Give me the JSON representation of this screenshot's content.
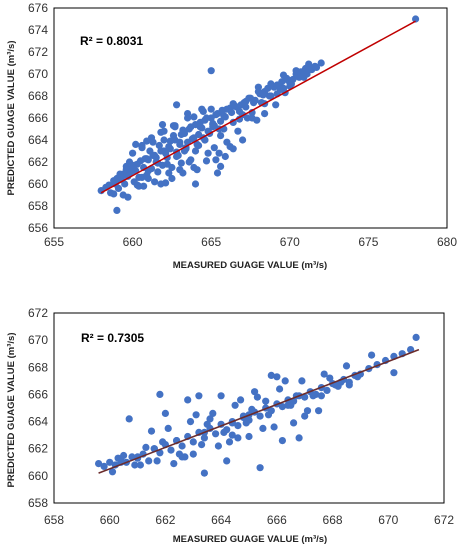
{
  "figure": {
    "panels": [
      {
        "r2_label": "R² = 0.8031",
        "xlabel": "MEASURED GUAGE VALUE (m³/s)",
        "ylabel": "PREDICTED GUAGE VALUE (m³/s)"
      },
      {
        "r2_label": "R² = 0.7305",
        "xlabel": "MEASURED GUAGE VALUE (m³/s)",
        "ylabel": "PREDICTED GUAGE VALUE (m³/s)"
      }
    ]
  },
  "colors": {
    "points": "#4472c4",
    "fit_line_top": "#c00000",
    "fit_line_bottom": "#7b2c2c",
    "frame": "#000000"
  },
  "chart_data": [
    {
      "type": "scatter",
      "title": "",
      "xlabel": "MEASURED GUAGE VALUE (m³/s)",
      "ylabel": "PREDICTED GUAGE VALUE (m³/s)",
      "xlim": [
        655,
        680
      ],
      "ylim": [
        656,
        676
      ],
      "xticks": [
        655,
        660,
        665,
        670,
        675,
        680
      ],
      "yticks": [
        656,
        658,
        660,
        662,
        664,
        666,
        668,
        670,
        672,
        674,
        676
      ],
      "grid": false,
      "annotation": "R² = 0.8031",
      "trendline": {
        "x": [
          658,
          678
        ],
        "y": [
          659.2,
          674.8
        ]
      },
      "x": [
        658.0,
        658.3,
        658.5,
        658.8,
        659.0,
        659.2,
        659.4,
        659.6,
        659.8,
        660.0,
        660.1,
        660.3,
        660.5,
        660.6,
        660.8,
        661.0,
        661.1,
        661.3,
        661.5,
        661.7,
        661.9,
        662.0,
        662.2,
        662.4,
        662.6,
        662.8,
        663.0,
        663.2,
        663.4,
        663.6,
        663.8,
        664.0,
        664.2,
        664.4,
        664.6,
        664.8,
        665.0,
        665.2,
        665.4,
        665.6,
        665.8,
        666.0,
        666.3,
        666.6,
        666.9,
        667.2,
        667.5,
        667.8,
        668.1,
        668.4,
        668.7,
        669.0,
        669.3,
        669.6,
        669.9,
        670.2,
        670.5,
        670.8,
        671.1,
        671.4,
        671.7,
        672.0,
        658.6,
        658.9,
        659.1,
        659.5,
        659.7,
        659.9,
        660.2,
        660.4,
        660.7,
        660.9,
        661.2,
        661.4,
        661.6,
        661.8,
        662.1,
        662.3,
        662.5,
        662.7,
        662.9,
        663.1,
        663.3,
        663.5,
        663.7,
        663.9,
        664.1,
        664.3,
        664.5,
        664.7,
        664.9,
        665.1,
        665.3,
        665.5,
        665.7,
        665.9,
        666.2,
        666.5,
        666.8,
        667.1,
        667.4,
        667.7,
        668.0,
        668.3,
        668.6,
        668.9,
        669.2,
        669.5,
        669.8,
        670.1,
        670.4,
        670.7,
        671.0,
        659.3,
        659.6,
        660.0,
        660.3,
        660.6,
        660.9,
        661.2,
        661.5,
        661.8,
        662.1,
        662.4,
        662.7,
        663.0,
        663.3,
        663.6,
        663.9,
        664.2,
        664.5,
        664.8,
        665.1,
        665.4,
        665.7,
        666.0,
        666.4,
        666.8,
        667.2,
        667.6,
        668.0,
        668.4,
        668.8,
        669.2,
        669.6,
        670.0,
        670.4,
        670.8,
        671.2,
        671.6,
        660.4,
        661.0,
        661.6,
        662.2,
        662.8,
        663.4,
        664.0,
        664.6,
        665.2,
        665.8,
        666.4,
        667.0,
        667.6,
        668.2,
        668.8,
        669.4,
        670.0,
        670.6,
        671.2,
        659.2,
        659.8,
        660.6,
        661.3,
        662.0,
        662.7,
        663.5,
        664.3,
        665.0,
        665.6,
        659.4,
        660.7,
        661.8,
        662.5,
        663.2,
        663.9,
        664.7,
        665.5,
        666.2,
        667.0,
        661.0,
        662.0,
        663.1,
        664.0,
        665.3,
        666.7,
        668.4,
        669.7,
        659.7,
        658.8,
        660.2,
        661.9,
        663.7,
        665.6,
        667.3,
        670.9,
        662.6,
        664.4,
        660.1,
        660.9,
        661.4,
        662.3,
        663.0,
        664.1,
        665.9,
        666.4,
        667.9,
        669.1,
        665.0,
        665.1,
        664.6,
        663.5,
        662.8,
        659.0,
        678.0
      ],
      "y": [
        659.4,
        659.7,
        659.9,
        660.3,
        660.5,
        660.4,
        660.9,
        661.3,
        661.0,
        661.5,
        660.2,
        661.8,
        662.1,
        660.6,
        662.3,
        661.2,
        663.0,
        662.6,
        662.0,
        663.5,
        661.7,
        664.0,
        662.4,
        663.2,
        664.4,
        662.9,
        663.8,
        664.9,
        663.3,
        665.0,
        664.1,
        665.4,
        664.5,
        665.1,
        665.8,
        664.8,
        666.0,
        665.3,
        666.4,
        665.7,
        666.2,
        666.8,
        666.5,
        667.0,
        667.2,
        667.5,
        667.8,
        667.6,
        668.2,
        668.4,
        668.0,
        668.8,
        669.0,
        668.7,
        669.4,
        669.5,
        669.8,
        670.2,
        670.0,
        670.4,
        670.6,
        671.0,
        659.2,
        660.0,
        659.6,
        660.0,
        660.7,
        661.1,
        661.2,
        660.6,
        661.5,
        662.3,
        661.4,
        662.6,
        661.9,
        663.0,
        662.8,
        663.4,
        661.5,
        664.0,
        662.6,
        664.5,
        663.0,
        663.8,
        665.2,
        664.2,
        663.6,
        665.6,
        664.2,
        666.0,
        664.6,
        665.5,
        666.3,
        665.0,
        666.6,
        666.1,
        666.9,
        667.1,
        666.6,
        667.4,
        667.8,
        667.4,
        668.4,
        668.1,
        668.7,
        668.9,
        669.0,
        669.3,
        669.6,
        669.1,
        670.0,
        670.2,
        670.5,
        660.6,
        661.6,
        662.8,
        659.9,
        663.5,
        660.8,
        664.2,
        662.4,
        664.7,
        660.1,
        663.9,
        665.2,
        661.3,
        664.6,
        662.0,
        666.1,
        663.5,
        666.6,
        662.8,
        665.4,
        661.0,
        666.7,
        663.8,
        667.3,
        665.9,
        667.0,
        666.5,
        668.8,
        667.3,
        669.1,
        668.2,
        669.9,
        668.9,
        670.3,
        669.8,
        670.9,
        670.7,
        659.8,
        660.5,
        661.1,
        661.8,
        662.5,
        663.2,
        663.0,
        664.0,
        663.3,
        665.0,
        665.6,
        666.3,
        666.0,
        667.4,
        668.0,
        668.6,
        669.4,
        669.7,
        670.4,
        660.9,
        662.0,
        663.3,
        663.8,
        664.8,
        665.3,
        666.0,
        665.2,
        666.8,
        664.4,
        659.0,
        659.8,
        660.0,
        660.5,
        661.0,
        661.5,
        662.1,
        662.8,
        663.4,
        664.0,
        662.2,
        663.0,
        661.9,
        660.0,
        662.2,
        664.8,
        666.4,
        668.3,
        658.8,
        659.1,
        663.6,
        665.4,
        662.2,
        661.6,
        666.0,
        669.7,
        665.3,
        666.8,
        661.7,
        663.9,
        660.2,
        661.0,
        663.6,
        661.3,
        662.5,
        663.2,
        665.8,
        667.2,
        670.3,
        665.2,
        664.0,
        666.4,
        667.2,
        657.6,
        675.0
      ]
    },
    {
      "type": "scatter",
      "title": "",
      "xlabel": "MEASURED GUAGE VALUE (m³/s)",
      "ylabel": "PREDICTED GUAGE VALUE (m³/s)",
      "xlim": [
        658,
        672
      ],
      "ylim": [
        658,
        672
      ],
      "xticks": [
        658,
        660,
        662,
        664,
        666,
        668,
        670,
        672
      ],
      "yticks": [
        658,
        660,
        662,
        664,
        666,
        668,
        670,
        672
      ],
      "grid": false,
      "annotation": "R² = 0.7305",
      "trendline": {
        "x": [
          659.6,
          671.1
        ],
        "y": [
          660.2,
          669.3
        ]
      },
      "x": [
        659.6,
        659.8,
        660.0,
        660.2,
        660.4,
        660.6,
        660.8,
        661.0,
        661.2,
        661.4,
        661.6,
        661.8,
        662.0,
        662.2,
        662.4,
        662.6,
        662.8,
        663.0,
        663.2,
        663.4,
        663.6,
        663.8,
        664.0,
        664.2,
        664.4,
        664.6,
        664.8,
        665.0,
        665.2,
        665.4,
        665.6,
        665.8,
        666.0,
        666.2,
        666.4,
        666.6,
        666.8,
        667.0,
        667.2,
        667.4,
        667.6,
        667.8,
        668.0,
        668.2,
        668.4,
        668.6,
        668.8,
        669.0,
        669.3,
        669.6,
        669.9,
        670.2,
        670.5,
        670.8,
        671.0,
        660.1,
        660.5,
        660.9,
        661.3,
        661.7,
        662.1,
        662.5,
        662.9,
        663.3,
        663.7,
        664.1,
        664.5,
        664.9,
        665.3,
        665.7,
        666.1,
        666.5,
        666.9,
        667.3,
        667.7,
        668.1,
        668.5,
        668.9,
        669.4,
        660.3,
        661.1,
        661.9,
        662.7,
        663.5,
        664.3,
        665.1,
        665.9,
        666.7,
        667.5,
        668.3,
        661.5,
        662.3,
        663.1,
        663.9,
        664.7,
        665.5,
        666.3,
        667.1,
        662.0,
        663.0,
        664.0,
        665.0,
        666.0,
        667.0,
        662.6,
        663.6,
        664.6,
        665.6,
        666.6,
        663.2,
        664.2,
        665.2,
        666.2,
        660.7,
        664.4,
        665.8,
        667.9,
        670.2,
        663.4,
        661.8,
        666.8,
        664.8,
        662.8,
        665.4,
        660.4,
        661.0,
        661.6,
        662.4,
        663.4,
        664.4,
        665.0,
        666.4,
        667.6,
        668.6
      ],
      "y": [
        660.9,
        660.7,
        661.0,
        660.8,
        661.2,
        661.0,
        661.4,
        661.3,
        661.6,
        661.1,
        662.0,
        661.7,
        662.3,
        661.9,
        662.6,
        662.2,
        662.9,
        662.5,
        663.2,
        662.8,
        663.5,
        663.1,
        663.8,
        663.4,
        664.0,
        663.7,
        664.3,
        664.1,
        664.7,
        664.4,
        665.0,
        664.8,
        665.3,
        665.1,
        665.6,
        665.5,
        665.9,
        665.8,
        666.2,
        666.0,
        666.5,
        666.3,
        666.8,
        666.6,
        667.1,
        666.9,
        667.4,
        667.5,
        667.9,
        668.2,
        668.5,
        668.8,
        669.0,
        669.3,
        670.2,
        660.3,
        661.5,
        660.8,
        662.1,
        661.1,
        663.5,
        661.6,
        664.0,
        662.3,
        664.6,
        663.2,
        665.2,
        663.9,
        665.8,
        664.5,
        666.4,
        665.2,
        667.0,
        665.9,
        667.5,
        666.7,
        668.1,
        667.3,
        668.9,
        661.3,
        660.8,
        662.5,
        661.4,
        663.8,
        662.5,
        664.9,
        663.6,
        665.9,
        664.8,
        666.9,
        663.3,
        660.9,
        664.5,
        662.2,
        665.6,
        663.5,
        667.0,
        664.8,
        664.6,
        661.6,
        665.9,
        662.9,
        667.3,
        664.4,
        661.4,
        664.2,
        662.8,
        665.5,
        663.9,
        665.9,
        661.1,
        666.2,
        662.6,
        664.2,
        663.0,
        667.4,
        667.2,
        667.6,
        660.2,
        666.0,
        662.8,
        664.4,
        665.6,
        660.6,
        661.0,
        661.4,
        662.0,
        662.6,
        663.2,
        663.9,
        664.5,
        665.2,
        665.9,
        666.7
      ]
    }
  ]
}
